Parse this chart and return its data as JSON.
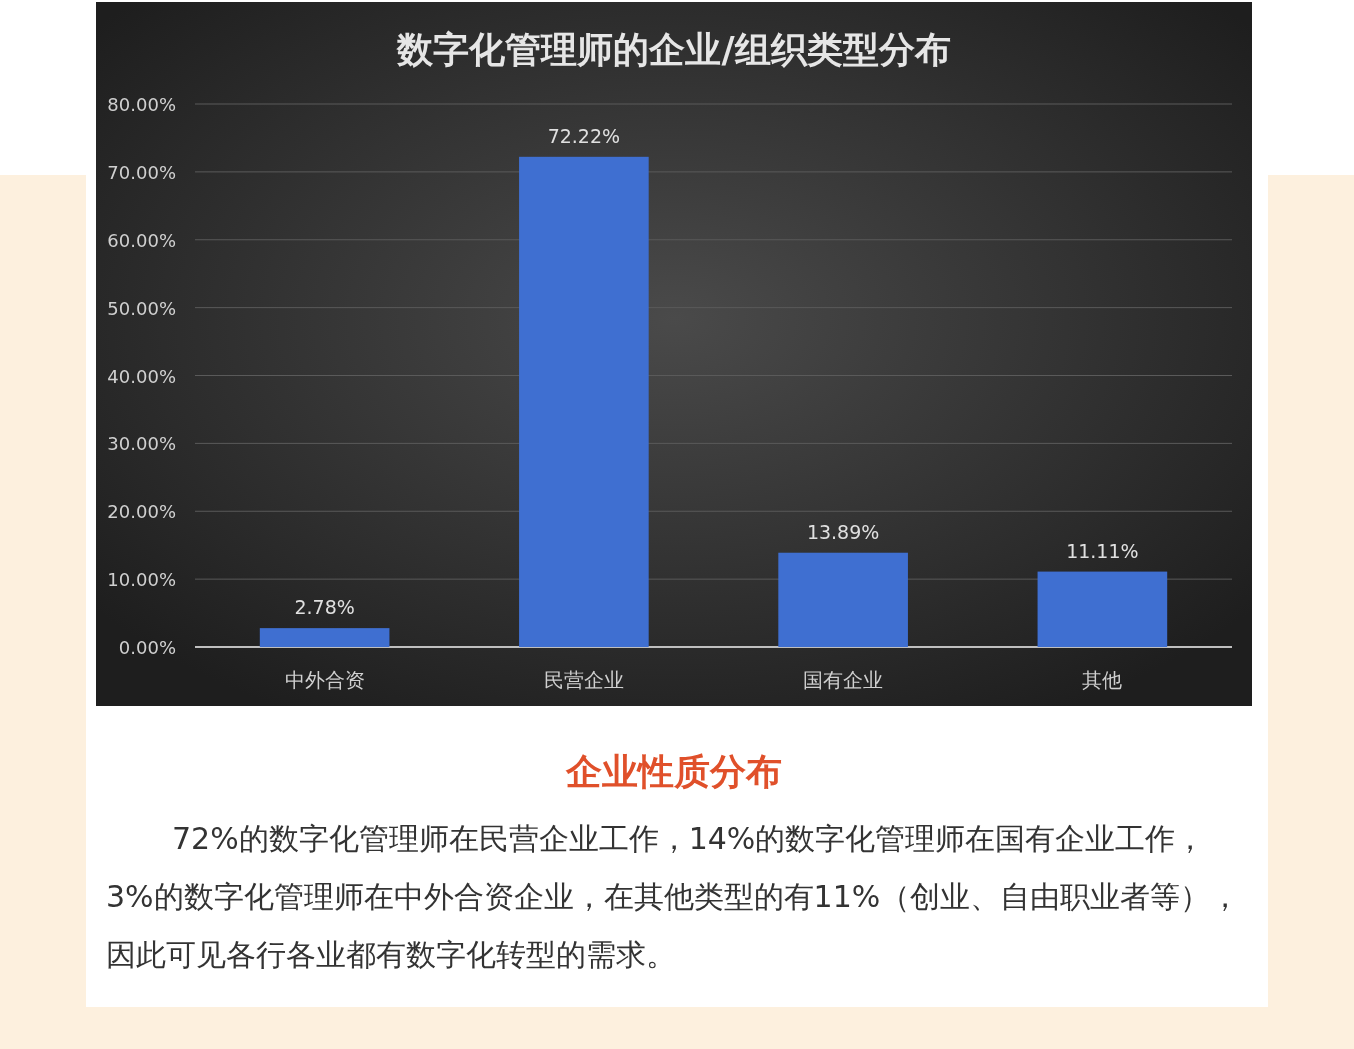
{
  "chart_data": {
    "type": "bar",
    "title": "数字化管理师的企业/组织类型分布",
    "categories": [
      "中外合资",
      "民营企业",
      "国有企业",
      "其他"
    ],
    "values": [
      2.78,
      72.22,
      13.89,
      11.11
    ],
    "value_labels": [
      "2.78%",
      "72.22%",
      "13.89%",
      "11.11%"
    ],
    "color": "#3f6fd1",
    "ylim": [
      0,
      80
    ],
    "yticks": [
      {
        "value": 0,
        "label": "0.00%"
      },
      {
        "value": 10,
        "label": "10.00%"
      },
      {
        "value": 20,
        "label": "20.00%"
      },
      {
        "value": 30,
        "label": "30.00%"
      },
      {
        "value": 40,
        "label": "40.00%"
      },
      {
        "value": 50,
        "label": "50.00%"
      },
      {
        "value": 60,
        "label": "60.00%"
      },
      {
        "value": 70,
        "label": "70.00%"
      },
      {
        "value": 80,
        "label": "80.00%"
      }
    ],
    "grid": "y",
    "annotations": [
      "企业性质分布",
      "72%的数字化管理师在民营企业工作，14%的数字化管理师在国有企业工作，3%的数字化管理师在中外合资企业，在其他类型的有11%（创业、自由职业者等），因此可见各行各业都有数字化转型的需求。"
    ]
  }
}
